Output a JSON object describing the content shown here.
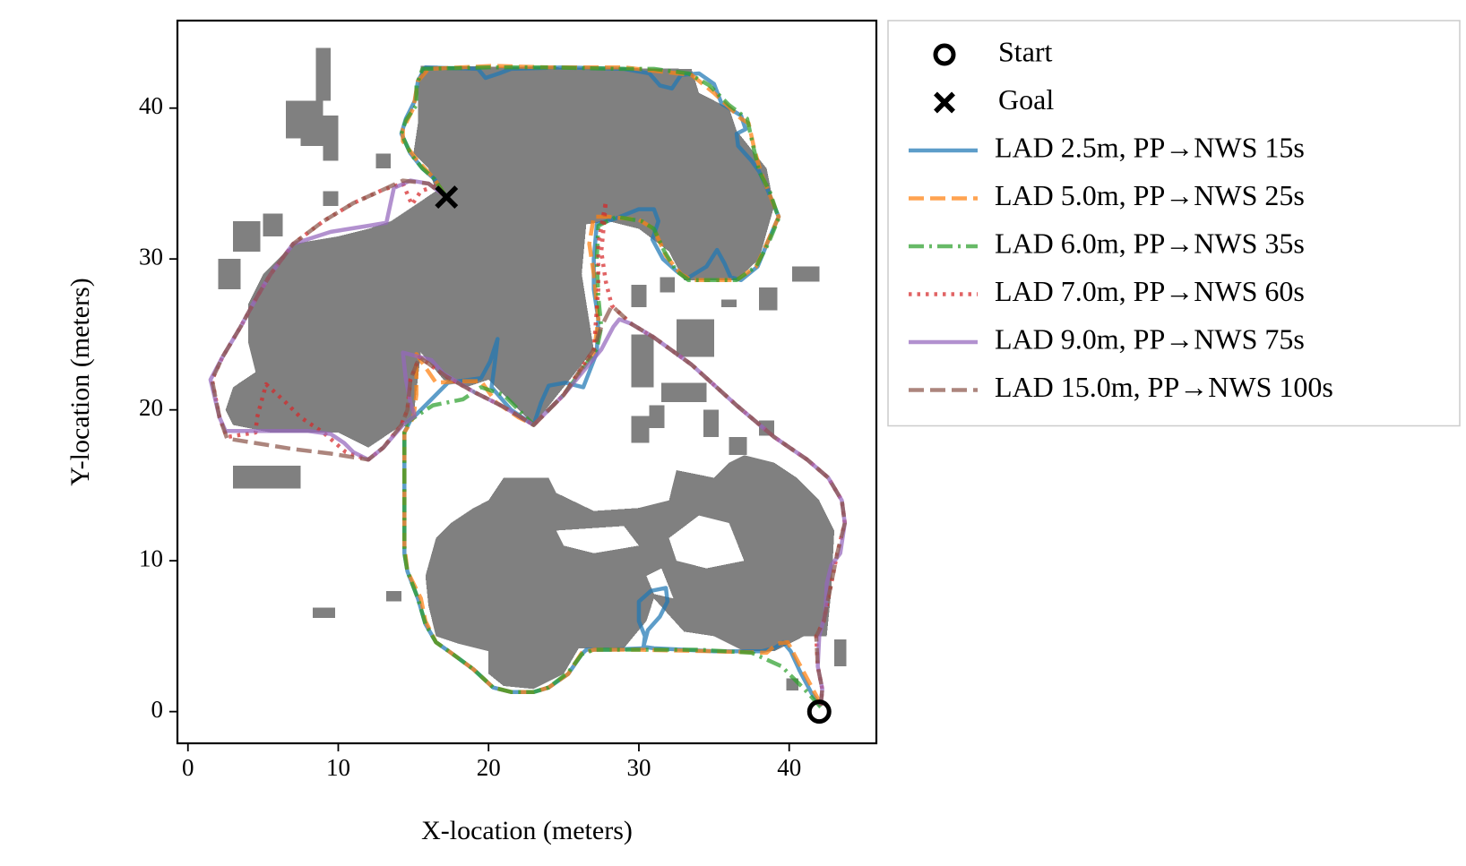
{
  "chart_data": {
    "type": "line",
    "xlabel": "X-location (meters)",
    "ylabel": "Y-location (meters)",
    "xlim": [
      -0.7,
      45.8
    ],
    "ylim": [
      -2.1,
      45.8
    ],
    "xticks": [
      0,
      10,
      20,
      30,
      40
    ],
    "yticks": [
      0,
      10,
      20,
      30,
      40
    ],
    "legend": "outside",
    "markers": [
      {
        "name": "Start",
        "marker": "circle",
        "color": "#000000",
        "x": 42,
        "y": 0
      },
      {
        "name": "Goal",
        "marker": "x",
        "color": "#000000",
        "x": 17.2,
        "y": 34.1
      }
    ],
    "series": [
      {
        "name": "LAD 2.5m, PP→NWS 15s",
        "color": "#1f77b4",
        "linestyle": "solid",
        "x": [
          42.1,
          41.5,
          40.7,
          40.1,
          39.6,
          39,
          38.2,
          35,
          33,
          31,
          30.3,
          30.6,
          31.4,
          31.9,
          31.8,
          30.8,
          30,
          30,
          30.4,
          30.3,
          28,
          26.5,
          26.2,
          25.3,
          24,
          23,
          21.5,
          20.3,
          19,
          17.5,
          16.5,
          15.8,
          15.3,
          14.6,
          14.4,
          14.4,
          14.8,
          16,
          17.3,
          19.5,
          20.1,
          20.6,
          20.4,
          20.2,
          21.5,
          23,
          23.5,
          24,
          25.1,
          26.3,
          27.2,
          27.3,
          27,
          27,
          27.2,
          28.5,
          30,
          31,
          31.3,
          30.9,
          31.6,
          32.5,
          33.2,
          34.5,
          35.2,
          35.7,
          36.1,
          36.8,
          37.9,
          38.6,
          39.3,
          38.6,
          38,
          37.5,
          36.6,
          36.5,
          37.1,
          36.8,
          35.5,
          35,
          34,
          32.8,
          32.2,
          31.4,
          30.7,
          29,
          25,
          21.5,
          20.7,
          19.8,
          19.3,
          15.8,
          15.3,
          15.1,
          14.5,
          14.2,
          14.8,
          15.6,
          16.4,
          17.2
        ],
        "y": [
          0.4,
          1.2,
          2.7,
          4,
          4.6,
          4.2,
          4,
          4,
          4.1,
          4.2,
          4.3,
          5.4,
          6.3,
          7.3,
          8.2,
          8,
          7.3,
          6,
          5,
          4.2,
          4.1,
          4.1,
          3.8,
          2.5,
          1.6,
          1.3,
          1.3,
          1.6,
          2.8,
          3.9,
          4.6,
          5.8,
          7.5,
          9.3,
          10.5,
          18.5,
          19.3,
          20.5,
          21.8,
          22.1,
          23.2,
          24.7,
          23,
          21.5,
          20,
          19,
          20.5,
          21.6,
          21.8,
          21.5,
          23.8,
          26,
          28,
          30,
          32.3,
          32.7,
          33.3,
          33.3,
          32.5,
          31.3,
          30,
          29.2,
          28.7,
          29.5,
          30.6,
          29.7,
          28.8,
          28.6,
          29.5,
          31.2,
          32.8,
          34.5,
          35.8,
          36.5,
          37.5,
          38.3,
          38.6,
          39.5,
          40.3,
          41.6,
          42.3,
          42.2,
          41.3,
          41.5,
          42.3,
          42.6,
          42.7,
          42.6,
          42.3,
          42,
          42.6,
          42.7,
          41.8,
          40.5,
          39.3,
          38.3,
          37,
          36,
          35.3,
          34.1
        ]
      },
      {
        "name": "LAD 5.0m, PP→NWS 25s",
        "color": "#ff7f0e",
        "linestyle": "dashed",
        "x": [
          42.1,
          41.3,
          40.6,
          39.9,
          39.2,
          38.5,
          35,
          30,
          27,
          26.2,
          25.3,
          24,
          23,
          21.5,
          20.3,
          19,
          17.5,
          16.5,
          15.8,
          15.5,
          14.6,
          14.4,
          14.4,
          15,
          15.2,
          15.2,
          16.5,
          18.2,
          19.5,
          20.5,
          22,
          23,
          25,
          27,
          27.3,
          27,
          26.7,
          27,
          28,
          30,
          31,
          31.8,
          32.8,
          33.5,
          36.5,
          37.8,
          38.5,
          39.3,
          38.6,
          38.1,
          37.7,
          37.3,
          36.8,
          35,
          33.5,
          29,
          24,
          20.3,
          16,
          15.3,
          15,
          14.3,
          14.3,
          15.2,
          16.4,
          17.2
        ],
        "y": [
          0.5,
          2,
          3.3,
          4.6,
          4.5,
          3.9,
          4,
          4.1,
          4.1,
          3.9,
          2.5,
          1.6,
          1.3,
          1.3,
          1.6,
          2.8,
          3.9,
          4.6,
          6,
          7.5,
          9.3,
          11,
          18.5,
          19.5,
          21,
          23.7,
          21.8,
          21.9,
          21.9,
          20.5,
          19.5,
          19,
          21,
          23.8,
          26,
          29,
          31,
          32.8,
          32.8,
          32.6,
          32,
          30.2,
          29,
          28.6,
          28.6,
          29.5,
          31,
          32.8,
          34.5,
          35.8,
          37.2,
          39,
          39.3,
          41,
          42.2,
          42.7,
          42.7,
          42.8,
          42.6,
          41.8,
          40,
          38.6,
          37.8,
          36.6,
          35.3,
          34.1
        ]
      },
      {
        "name": "LAD 6.0m, PP→NWS 35s",
        "color": "#2ca02c",
        "linestyle": "dashdot",
        "x": [
          42.1,
          41,
          39.5,
          37.5,
          34,
          30,
          27,
          26.2,
          25.3,
          24,
          23,
          21.5,
          20.3,
          19,
          17.5,
          16.5,
          15.8,
          15.3,
          14.6,
          14.4,
          14.4,
          14.4,
          14.6,
          16.3,
          18.3,
          19.5,
          21,
          22.5,
          23,
          25,
          27.2,
          27.5,
          27.3,
          27.2,
          27.3,
          28.5,
          30.2,
          31,
          31.7,
          32.5,
          33.3,
          36.5,
          37.8,
          38.6,
          39.3,
          38.7,
          38,
          37.6,
          37.2,
          36,
          34.7,
          33.3,
          31,
          28.6,
          24,
          20,
          15.6,
          15.2,
          15.2,
          14.5,
          14.2,
          14.8,
          15.6,
          16.4,
          17.2
        ],
        "y": [
          0.3,
          1.5,
          3,
          3.9,
          4.1,
          4.1,
          4.1,
          3.8,
          2.6,
          1.6,
          1.3,
          1.3,
          1.6,
          2.8,
          3.9,
          4.6,
          5.8,
          7.5,
          9.3,
          10.5,
          14,
          18.5,
          19.2,
          20.3,
          20.7,
          21.5,
          21,
          19.5,
          19,
          21,
          24,
          25.5,
          27.5,
          30,
          32.2,
          32.8,
          32.5,
          32,
          30.5,
          29.2,
          28.6,
          28.6,
          29.5,
          31,
          32.7,
          34.5,
          35.8,
          37.5,
          39.3,
          40.2,
          41.5,
          42.3,
          42.6,
          42.6,
          42.7,
          42.7,
          42.6,
          41.5,
          40.2,
          39.2,
          38.3,
          37,
          36,
          35.3,
          34.1
        ]
      },
      {
        "name": "LAD 7.0m, PP→NWS 60s",
        "color": "#d62728",
        "linestyle": "dotted",
        "x": [
          42.1,
          42.2,
          41.9,
          41.8,
          42.3,
          42.7,
          43.2,
          43.7,
          43.5,
          42.6,
          41.2,
          39,
          36.5,
          33.5,
          31,
          29.5,
          28.2,
          27.8,
          27.5,
          27.7,
          27.8,
          27.3,
          27.3,
          27,
          25,
          23,
          21,
          19,
          17.2,
          15.4,
          14.8,
          14.6,
          14.2,
          13,
          12,
          10.5,
          9,
          7.5,
          6.5,
          5.2,
          4.6,
          4.5,
          2.6,
          2.1,
          1.6,
          2.3,
          3.5,
          4.6,
          5.5,
          7,
          9,
          11,
          13,
          14.3,
          14.9,
          15.5,
          16.4,
          17.2
        ],
        "y": [
          0.4,
          1.5,
          3,
          5,
          6,
          8,
          10.5,
          12.5,
          14,
          15.5,
          16.7,
          18.2,
          20.3,
          23,
          24.8,
          25.7,
          26.9,
          28.5,
          30.5,
          32.5,
          33.8,
          31,
          28,
          24,
          21,
          19,
          20.2,
          21.2,
          22.2,
          23.5,
          22,
          20,
          19,
          17.5,
          16.7,
          17.2,
          18.5,
          19.5,
          20.5,
          21.7,
          19.5,
          18.5,
          18.2,
          19.5,
          22,
          23.5,
          25.5,
          27.5,
          29,
          31,
          32.5,
          33.7,
          34.6,
          35,
          33.6,
          34.5,
          34.8,
          34.1
        ]
      },
      {
        "name": "LAD 9.0m, PP→NWS 75s",
        "color": "#9467bd",
        "linestyle": "solid",
        "x": [
          42.1,
          42.2,
          41.9,
          42,
          42.4,
          42.5,
          42.8,
          43.4,
          43.7,
          43.5,
          42.6,
          41.2,
          39,
          36.5,
          33.5,
          31,
          29.5,
          28.7,
          28.3,
          27.5,
          25,
          23,
          21,
          19,
          17,
          16.2,
          14.3,
          14.5,
          14.8,
          15.1,
          14.3,
          13,
          12,
          11,
          10.4,
          9.5,
          8,
          4,
          2.5,
          2.1,
          1.5,
          2.3,
          3.5,
          4.6,
          5.5,
          7,
          9.5,
          12,
          13.2,
          13.7,
          14.8,
          16,
          17.2
        ],
        "y": [
          0.4,
          1.5,
          3,
          5,
          6.5,
          8.5,
          9.7,
          10.5,
          12.5,
          14,
          15.5,
          16.7,
          18.2,
          20.3,
          23,
          24.8,
          25.7,
          26,
          25.5,
          24,
          21,
          19,
          20.2,
          21.2,
          22.4,
          23.3,
          23.8,
          22,
          20.5,
          19.6,
          19,
          17.5,
          16.7,
          17.2,
          17.8,
          18.4,
          18.6,
          18.6,
          18.6,
          19.5,
          22,
          23.5,
          25.5,
          27.5,
          29,
          31,
          31.8,
          32.2,
          32.4,
          34.7,
          35.2,
          35,
          34.1
        ]
      },
      {
        "name": "LAD 15.0m, PP→NWS 100s",
        "color": "#8c564b",
        "linestyle": "dashed",
        "x": [
          42.1,
          42.2,
          41.9,
          41.8,
          42.3,
          42.7,
          43.2,
          43.7,
          43.5,
          42.6,
          41.2,
          39,
          36.5,
          33.5,
          31,
          29.5,
          28.2,
          27.5,
          27,
          25,
          23,
          21,
          19,
          17.2,
          15.4,
          14.8,
          14.6,
          14.2,
          13,
          12,
          9.5,
          7,
          4.5,
          2.6,
          2.1,
          1.6,
          2.3,
          3.5,
          4.6,
          5.5,
          7,
          9,
          11,
          13,
          14.3,
          16,
          17.2
        ],
        "y": [
          0.4,
          1.5,
          3,
          5,
          6,
          8,
          10.5,
          12.5,
          14,
          15.5,
          16.7,
          18.2,
          20.3,
          23,
          24.8,
          25.7,
          26.9,
          25.5,
          24,
          21,
          19,
          20.2,
          21.2,
          22.2,
          23.5,
          22,
          20,
          19,
          17.5,
          16.7,
          17.1,
          17.4,
          17.8,
          18.1,
          19.5,
          22,
          23.5,
          25.5,
          27.5,
          29,
          31,
          32.5,
          33.7,
          34.6,
          35.2,
          35,
          34.1
        ]
      }
    ]
  }
}
